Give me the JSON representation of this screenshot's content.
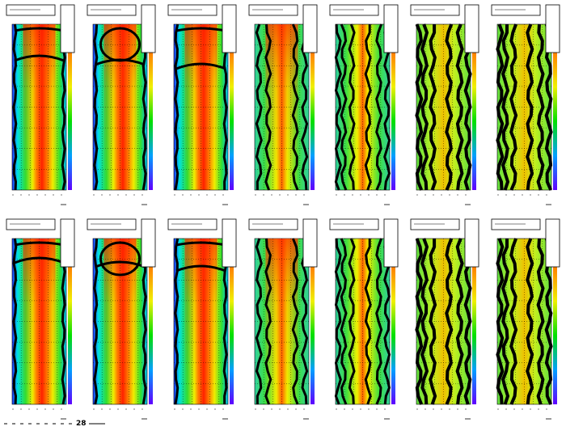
{
  "footer": {
    "label": "28"
  }
}
